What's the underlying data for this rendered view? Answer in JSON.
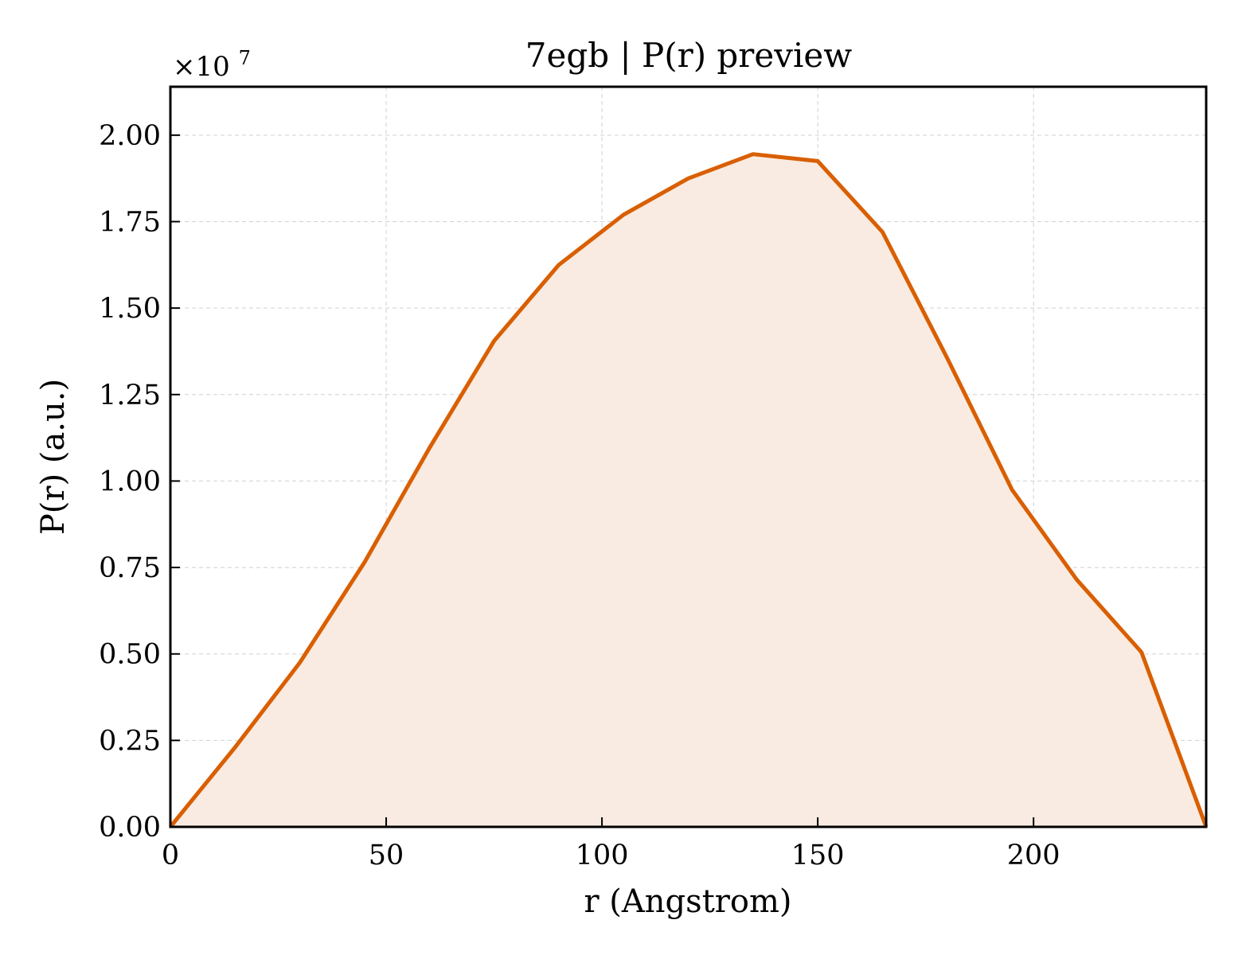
{
  "chart_data": {
    "type": "area",
    "title": "7egb | P(r) preview",
    "xlabel": "r (Angstrom)",
    "ylabel": "P(r) (a.u.)",
    "y_offset_label": "×10",
    "y_offset_exponent": "7",
    "xlim": [
      0,
      240
    ],
    "ylim": [
      0,
      2.14
    ],
    "x_ticks": [
      0,
      50,
      100,
      150,
      200
    ],
    "x_tick_labels": [
      "0",
      "50",
      "100",
      "150",
      "200"
    ],
    "y_ticks": [
      0,
      0.25,
      0.5,
      0.75,
      1.0,
      1.25,
      1.5,
      1.75,
      2.0
    ],
    "y_tick_labels": [
      "0.00",
      "0.25",
      "0.50",
      "0.75",
      "1.00",
      "1.25",
      "1.50",
      "1.75",
      "2.00"
    ],
    "grid": true,
    "line_color": "#d95f02",
    "fill_color": "#f9ebe1",
    "series": [
      {
        "x": [
          0,
          15,
          30,
          45,
          60,
          75,
          90,
          105,
          120,
          135,
          150,
          165,
          180,
          195,
          210,
          225,
          240
        ],
        "values": [
          0.0,
          0.23,
          0.475,
          0.765,
          1.095,
          1.405,
          1.625,
          1.77,
          1.875,
          1.945,
          1.925,
          1.72,
          1.355,
          0.975,
          0.715,
          0.505,
          0.0
        ]
      }
    ]
  }
}
